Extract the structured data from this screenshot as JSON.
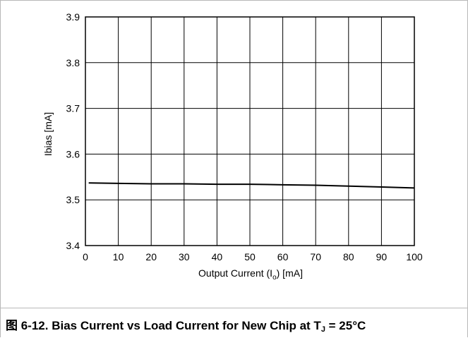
{
  "caption": {
    "prefix": "图 6-12. Bias Current vs Load Current for New Chip at T",
    "subscript": "J",
    "suffix": " = 25°C"
  },
  "chart_data": {
    "type": "line",
    "xlabel": {
      "main": "Output Current (I",
      "sub": "o",
      "tail": ") [mA]"
    },
    "ylabel": "Ibias [mA]",
    "xlim": [
      0,
      100
    ],
    "ylim": [
      3.4,
      3.9
    ],
    "xticks": [
      0,
      10,
      20,
      30,
      40,
      50,
      60,
      70,
      80,
      90,
      100
    ],
    "yticks": [
      3.4,
      3.5,
      3.6,
      3.7,
      3.8,
      3.9
    ],
    "ytick_labels": [
      "3.4",
      "3.5",
      "3.6",
      "3.7",
      "3.8",
      "3.9"
    ],
    "grid": true,
    "series": [
      {
        "color": "#000000",
        "x": [
          1,
          10,
          20,
          30,
          40,
          50,
          60,
          70,
          80,
          90,
          100
        ],
        "y": [
          3.537,
          3.536,
          3.535,
          3.535,
          3.534,
          3.534,
          3.533,
          3.532,
          3.53,
          3.528,
          3.526
        ]
      }
    ]
  }
}
